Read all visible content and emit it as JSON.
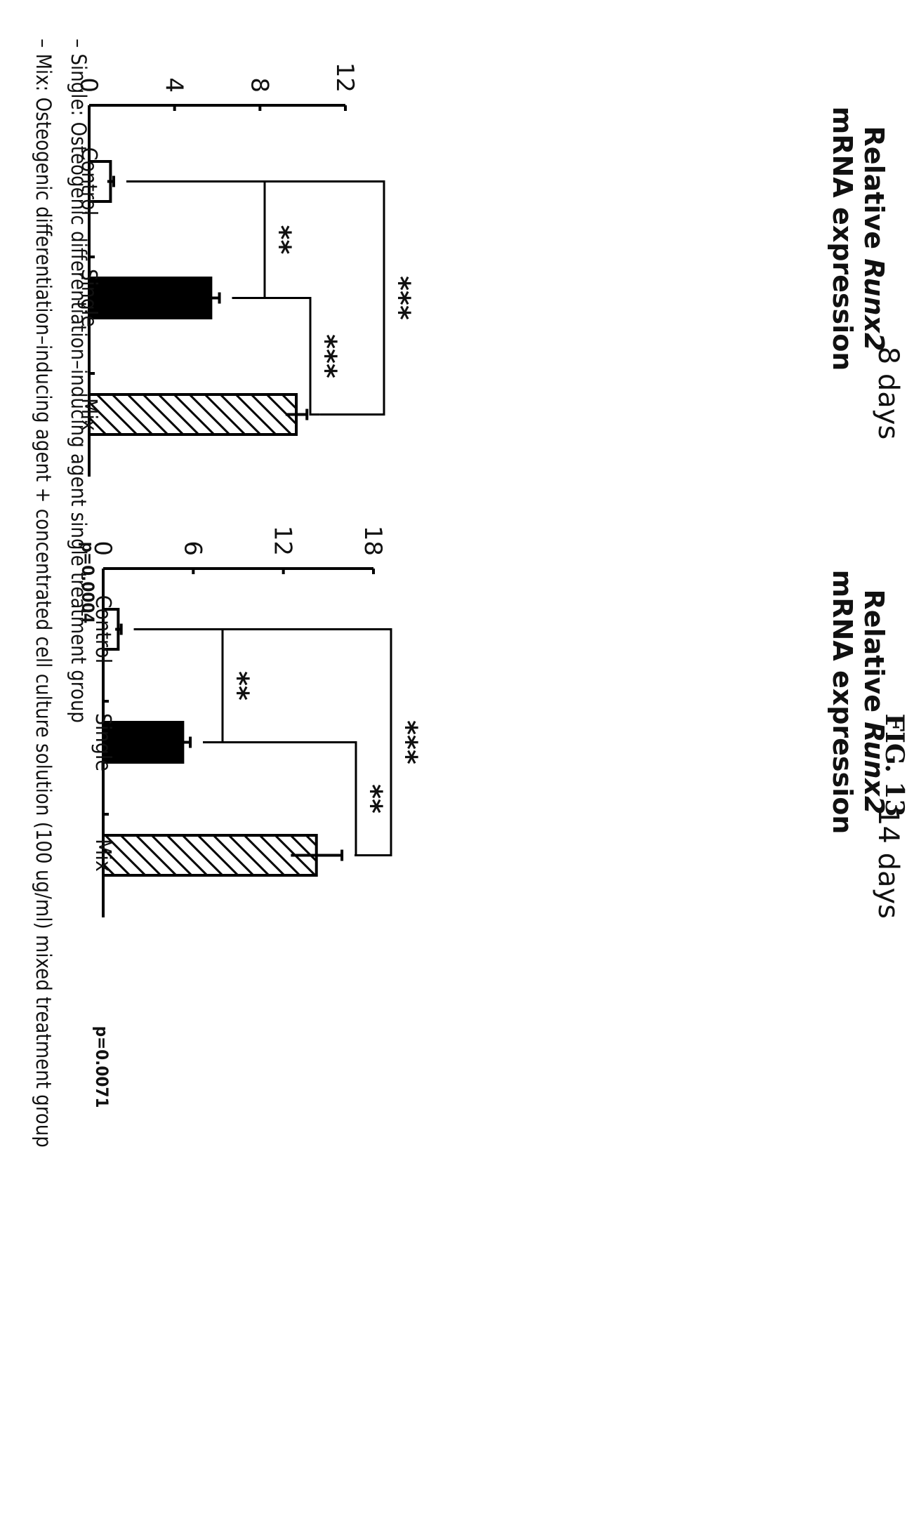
{
  "figure_label": "FIG. 13",
  "legend": [
    "– Single: Osteogenic differentiation–inducing agent single treatment group",
    "– Mix: Osteogenic differentiation–inducing agent + concentrated cell culture solution (100 ug/ml) mixed treatment group"
  ],
  "chart_data": [
    {
      "type": "bar",
      "title": "8 days",
      "ylabel_prefix": "Relative ",
      "ylabel_gene": "Runx2",
      "ylabel_line2": "mRNA expression",
      "categories": [
        "Control",
        "Single",
        "Mix"
      ],
      "values": [
        1.0,
        5.7,
        9.7
      ],
      "errors": [
        0.15,
        0.4,
        0.5
      ],
      "ylim": [
        0,
        12
      ],
      "yticks": [
        0,
        4,
        8,
        12
      ],
      "bar_fills": [
        "white",
        "black",
        "hatch"
      ],
      "p_value": "p=0.0004",
      "comparisons": [
        {
          "from": "Control",
          "to": "Single",
          "label": "**"
        },
        {
          "from": "Single",
          "to": "Mix",
          "label": "***"
        },
        {
          "from": "Control",
          "to": "Mix",
          "label": "***"
        }
      ]
    },
    {
      "type": "bar",
      "title": "14 days",
      "ylabel_prefix": "Relative ",
      "ylabel_gene": "Runx2",
      "ylabel_line2": "mRNA expression",
      "categories": [
        "Control",
        "Single",
        "Mix"
      ],
      "values": [
        1.0,
        5.3,
        14.2
      ],
      "errors": [
        0.2,
        0.5,
        1.7
      ],
      "ylim": [
        0,
        18
      ],
      "yticks": [
        0,
        6,
        12,
        18
      ],
      "bar_fills": [
        "white",
        "black",
        "hatch"
      ],
      "p_value": "p=0.0071",
      "comparisons": [
        {
          "from": "Control",
          "to": "Single",
          "label": "**"
        },
        {
          "from": "Single",
          "to": "Mix",
          "label": "**"
        },
        {
          "from": "Control",
          "to": "Mix",
          "label": "***"
        }
      ]
    }
  ]
}
